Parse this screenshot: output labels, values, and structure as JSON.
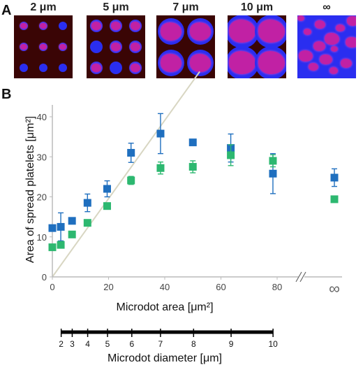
{
  "panel_a": {
    "letter": "A",
    "images": [
      {
        "label": "2 μm"
      },
      {
        "label": "5 μm"
      },
      {
        "label": "7 μm"
      },
      {
        "label": "10 μm"
      },
      {
        "label": "∞"
      }
    ],
    "colors": {
      "background": "#3a0505",
      "dot": "#2a2ef0",
      "platelet": "#dc1e96"
    }
  },
  "panel_b": {
    "letter": "B",
    "ylabel": "Area of spread platelets [μm²]",
    "xlabel": "Microdot area [μm²]",
    "diameter_label": "Microdot diameter [μm]",
    "infinity_label": "∞",
    "x_ticks": [
      "0",
      "20",
      "40",
      "60",
      "80"
    ],
    "y_ticks": [
      "0",
      "10",
      "20",
      "30",
      "40"
    ],
    "diameter_ticks": [
      "2",
      "3",
      "4",
      "5",
      "6",
      "7",
      "8",
      "9",
      "10"
    ]
  },
  "chart_data": {
    "type": "scatter",
    "xlabel": "Microdot area [μm²]",
    "ylabel": "Area of spread platelets [μm²]",
    "xlim": [
      0,
      90
    ],
    "ylim": [
      0,
      45
    ],
    "x_ticks": [
      0,
      20,
      40,
      60,
      80
    ],
    "y_ticks": [
      0,
      10,
      20,
      30,
      40
    ],
    "grid": false,
    "diagonal_line": {
      "from": [
        0,
        0
      ],
      "to": [
        45,
        45
      ],
      "color": "#d8d6c2"
    },
    "series": [
      {
        "color": "#1f6fbf",
        "marker": "square",
        "points": [
          {
            "x": 0,
            "y": 12.2,
            "err": 0
          },
          {
            "x": 3,
            "y": 12.5,
            "err": 3.5
          },
          {
            "x": 7,
            "y": 14.0,
            "err": 0
          },
          {
            "x": 12.5,
            "y": 18.5,
            "err": 2.2
          },
          {
            "x": 19.5,
            "y": 22.0,
            "err": 2.0
          },
          {
            "x": 28,
            "y": 31.0,
            "err": 2.4
          },
          {
            "x": 38.5,
            "y": 35.8,
            "err": 5.0
          },
          {
            "x": 50,
            "y": 33.6,
            "err": 0
          },
          {
            "x": 63.5,
            "y": 32.2,
            "err": 3.5
          },
          {
            "x": 78.5,
            "y": 25.8,
            "err": 5.0
          },
          {
            "x": "∞",
            "y": 24.8,
            "err": 2.2
          }
        ]
      },
      {
        "color": "#2db870",
        "marker": "square",
        "points": [
          {
            "x": 0,
            "y": 7.4,
            "err": 0
          },
          {
            "x": 3,
            "y": 8.0,
            "err": 0
          },
          {
            "x": 7,
            "y": 10.6,
            "err": 0
          },
          {
            "x": 12.5,
            "y": 13.5,
            "err": 0
          },
          {
            "x": 19.5,
            "y": 17.7,
            "err": 0.6
          },
          {
            "x": 28,
            "y": 24.1,
            "err": 1.0
          },
          {
            "x": 38.5,
            "y": 27.2,
            "err": 1.5
          },
          {
            "x": 50,
            "y": 27.5,
            "err": 1.5
          },
          {
            "x": 63.5,
            "y": 30.4,
            "err": 2.6
          },
          {
            "x": 78.5,
            "y": 29.0,
            "err": 1.5
          },
          {
            "x": "∞",
            "y": 19.4,
            "err": 0
          }
        ]
      }
    ],
    "secondary_axis": {
      "label": "Microdot diameter [μm]",
      "ticks": [
        2,
        3,
        4,
        5,
        6,
        7,
        8,
        9,
        10
      ],
      "range": [
        2,
        10
      ]
    }
  }
}
